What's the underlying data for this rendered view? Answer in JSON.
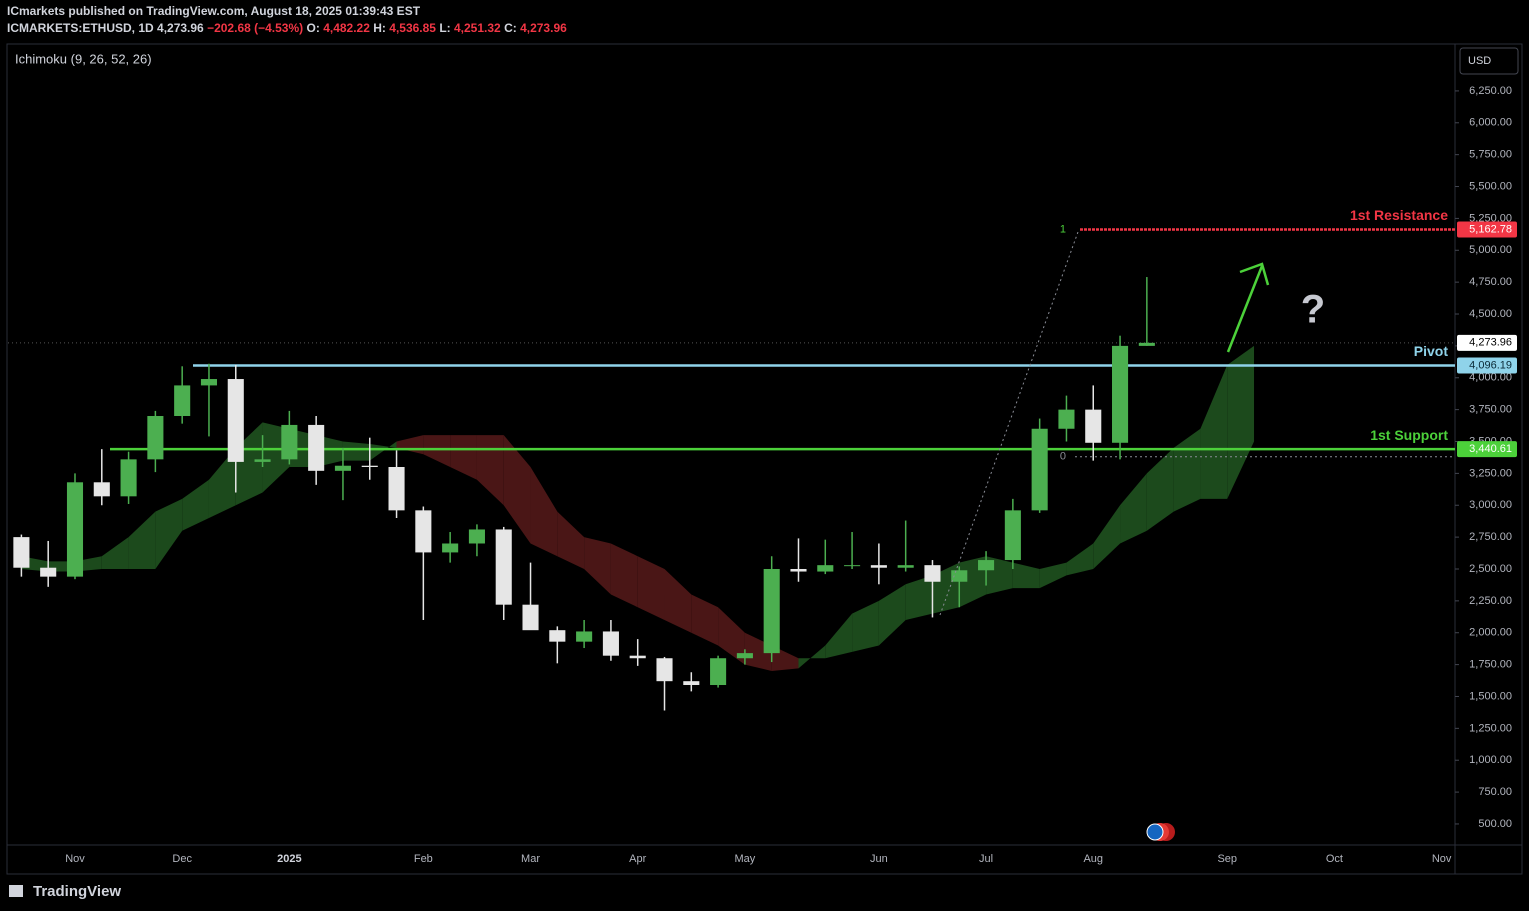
{
  "header": {
    "publisher": "ICmarkets published on TradingView.com, August 18, 2025 01:39:43 EST",
    "symbol": "ICMARKETS:ETHUSD, 1D",
    "price": "4,273.96",
    "change": "−202.68 (−4.53%)",
    "ohlc": [
      {
        "k": "O:",
        "v": "4,482.22"
      },
      {
        "k": "H:",
        "v": "4,536.85"
      },
      {
        "k": "L:",
        "v": "4,251.32"
      },
      {
        "k": "C:",
        "v": "4,273.96"
      }
    ],
    "indicator": "Ichimoku (9, 26, 52, 26)",
    "currency": "USD",
    "brand": "TradingView"
  },
  "chart_data": {
    "type": "candlestick",
    "categories": [
      null,
      null,
      "Nov",
      null,
      null,
      null,
      "Dec",
      null,
      null,
      null,
      "2025",
      null,
      null,
      null,
      null,
      "Feb",
      null,
      null,
      null,
      "Mar",
      null,
      null,
      null,
      "Apr",
      null,
      null,
      null,
      "May",
      null,
      null,
      null,
      null,
      "Jun",
      null,
      null,
      null,
      "Jul",
      null,
      null,
      null,
      "Aug",
      null,
      null,
      null,
      null,
      "Sep",
      null,
      null,
      null,
      "Oct",
      null,
      null,
      null,
      "Nov"
    ],
    "open": [
      2750,
      2510,
      2440,
      3180,
      3070,
      3360,
      3700,
      3940,
      3990,
      3340,
      3360,
      3630,
      3270,
      3310,
      3300,
      2960,
      2630,
      2700,
      2810,
      2220,
      2020,
      1930,
      2010,
      1820,
      1800,
      1620,
      1590,
      1800,
      1840,
      2500,
      2480,
      2530,
      2530,
      2510,
      2530,
      2400,
      2490,
      2570,
      2960,
      3600,
      3750,
      3490,
      4250,
      null,
      null,
      null,
      null,
      null,
      null,
      null,
      null,
      null,
      null,
      null
    ],
    "high": [
      2770,
      2720,
      3250,
      3440,
      3420,
      3740,
      4090,
      4110,
      4100,
      3550,
      3740,
      3700,
      3450,
      3530,
      3430,
      2990,
      2790,
      2850,
      2830,
      2550,
      2050,
      2100,
      2100,
      1950,
      1810,
      1690,
      1820,
      1870,
      2600,
      2740,
      2730,
      2790,
      2700,
      2880,
      2570,
      2520,
      2640,
      3050,
      3680,
      3860,
      3940,
      4330,
      4790,
      null,
      null,
      null,
      null,
      null,
      null,
      null,
      null,
      null,
      null,
      null
    ],
    "low": [
      2440,
      2360,
      2420,
      3000,
      3010,
      3260,
      3640,
      3540,
      3100,
      3300,
      3320,
      3160,
      3040,
      3200,
      2900,
      2100,
      2550,
      2600,
      2100,
      2060,
      1760,
      1880,
      1780,
      1740,
      1390,
      1540,
      1570,
      1750,
      1770,
      2400,
      2460,
      2500,
      2380,
      2480,
      2120,
      2200,
      2370,
      2500,
      2940,
      3500,
      3350,
      3360,
      4250,
      null,
      null,
      null,
      null,
      null,
      null,
      null,
      null,
      null,
      null,
      null
    ],
    "close": [
      2510,
      2440,
      3180,
      3070,
      3360,
      3700,
      3940,
      3990,
      3340,
      3360,
      3630,
      3270,
      3310,
      3300,
      2960,
      2630,
      2700,
      2810,
      2220,
      2020,
      1930,
      2010,
      1820,
      1800,
      1620,
      1590,
      1800,
      1840,
      2500,
      2480,
      2530,
      2530,
      2510,
      2530,
      2400,
      2490,
      2570,
      2960,
      3600,
      3750,
      3490,
      4250,
      4273.96,
      null,
      null,
      null,
      null,
      null,
      null,
      null,
      null,
      null,
      null,
      null
    ],
    "up_color": "#4caf50",
    "down_color": "#e6e6e6",
    "cloud": {
      "spanA": [
        2600,
        2560,
        2560,
        2600,
        2750,
        2950,
        3050,
        3200,
        3450,
        3650,
        3600,
        3550,
        3500,
        3480,
        3450,
        3400,
        3300,
        3200,
        3000,
        2700,
        2600,
        2500,
        2300,
        2200,
        2100,
        2000,
        1900,
        1750,
        1700,
        1720,
        1900,
        2150,
        2250,
        2380,
        2450,
        2550,
        2600,
        2550,
        2500,
        2550,
        2700,
        3000,
        3250,
        3450,
        3600,
        4100,
        4250,
        null,
        null,
        null,
        null,
        null,
        null,
        null
      ],
      "spanB": [
        2500,
        2480,
        2480,
        2500,
        2500,
        2500,
        2800,
        2900,
        3000,
        3100,
        3300,
        3300,
        3350,
        3350,
        3500,
        3550,
        3550,
        3550,
        3550,
        3300,
        2950,
        2750,
        2700,
        2600,
        2500,
        2300,
        2200,
        2000,
        1900,
        1800,
        1800,
        1850,
        1900,
        2100,
        2150,
        2200,
        2300,
        2350,
        2350,
        2450,
        2500,
        2700,
        2800,
        2950,
        3050,
        3050,
        3500,
        null,
        null,
        null,
        null,
        null,
        null,
        null
      ],
      "up_color": "#1c4a1c",
      "down_color": "#4a1616"
    },
    "levels": [
      {
        "name": "1st Resistance",
        "value": 5162.78,
        "label": "5,162.78",
        "color": "#f23645"
      },
      {
        "name": "Pivot",
        "value": 4096.19,
        "label": "4,096.19",
        "color": "#8fd3ea"
      },
      {
        "name": "1st Support",
        "value": 3440.61,
        "label": "3,440.61",
        "color": "#4cd13a"
      }
    ],
    "last": {
      "value": 4273.96,
      "label": "4,273.96"
    },
    "fib": {
      "levels": [
        1,
        0
      ],
      "prices": [
        5162.78,
        3380
      ]
    },
    "ylim": [
      335,
      6618
    ],
    "yticks": [
      {
        "value": 500,
        "label": "500.00"
      },
      {
        "value": 750,
        "label": "750.00"
      },
      {
        "value": 1000,
        "label": "1,000.00"
      },
      {
        "value": 1250,
        "label": "1,250.00"
      },
      {
        "value": 1500,
        "label": "1,500.00"
      },
      {
        "value": 1750,
        "label": "1,750.00"
      },
      {
        "value": 2000,
        "label": "2,000.00"
      },
      {
        "value": 2250,
        "label": "2,250.00"
      },
      {
        "value": 2500,
        "label": "2,500.00"
      },
      {
        "value": 2750,
        "label": "2,750.00"
      },
      {
        "value": 3000,
        "label": "3,000.00"
      },
      {
        "value": 3250,
        "label": "3,250.00"
      },
      {
        "value": 3500,
        "label": "3,500.00"
      },
      {
        "value": 3750,
        "label": "3,750.00"
      },
      {
        "value": 4000,
        "label": "4,000.00"
      },
      {
        "value": 4250,
        "label": "4,250.00"
      },
      {
        "value": 4500,
        "label": "4,500.00"
      },
      {
        "value": 4750,
        "label": "4,750.00"
      },
      {
        "value": 5000,
        "label": "5,000.00"
      },
      {
        "value": 5250,
        "label": "5,250.00"
      },
      {
        "value": 5500,
        "label": "5,500.00"
      },
      {
        "value": 5750,
        "label": "5,750.00"
      },
      {
        "value": 6000,
        "label": "6,000.00"
      },
      {
        "value": 6250,
        "label": "6,250.00"
      }
    ]
  }
}
